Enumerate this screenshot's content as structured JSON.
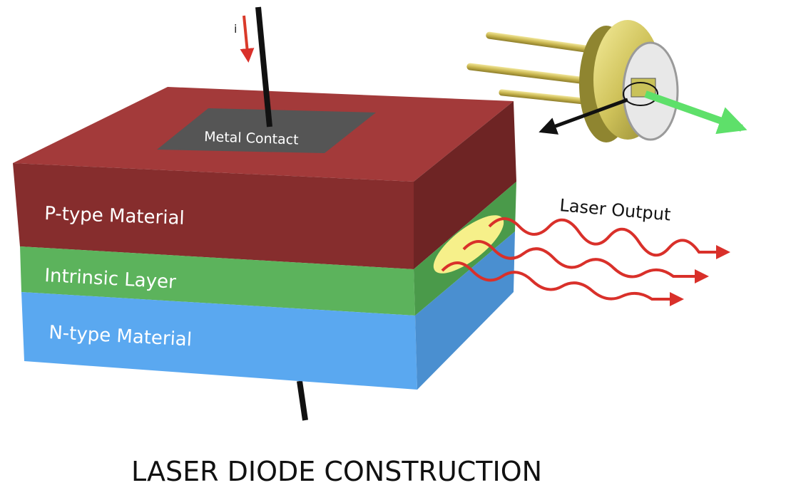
{
  "title": "LASER DIODE CONSTRUCTION",
  "labels": {
    "current": "i",
    "metal_contact": "Metal Contact",
    "p_layer": "P-type Material",
    "intrinsic_layer": "Intrinsic Layer",
    "n_layer": "N-type Material",
    "laser_output": "Laser Output"
  },
  "colors": {
    "p_front": "#862d2d",
    "p_top": "#a33a3a",
    "p_side": "#6e2424",
    "intrinsic_front": "#5cb35c",
    "intrinsic_side": "#4a9a4a",
    "n_front": "#5aa8f0",
    "n_side": "#4a8fd0",
    "metal_contact": "#555555",
    "current_arrow": "#d93a2a",
    "laser_wave": "#d9302a",
    "emission_spot": "#f6f08a",
    "package_body": "#d8cf6a",
    "green_beam": "#5ee06a"
  },
  "icons": {
    "current_arrow": "down-arrow-icon",
    "package": "laser-diode-package-icon"
  }
}
